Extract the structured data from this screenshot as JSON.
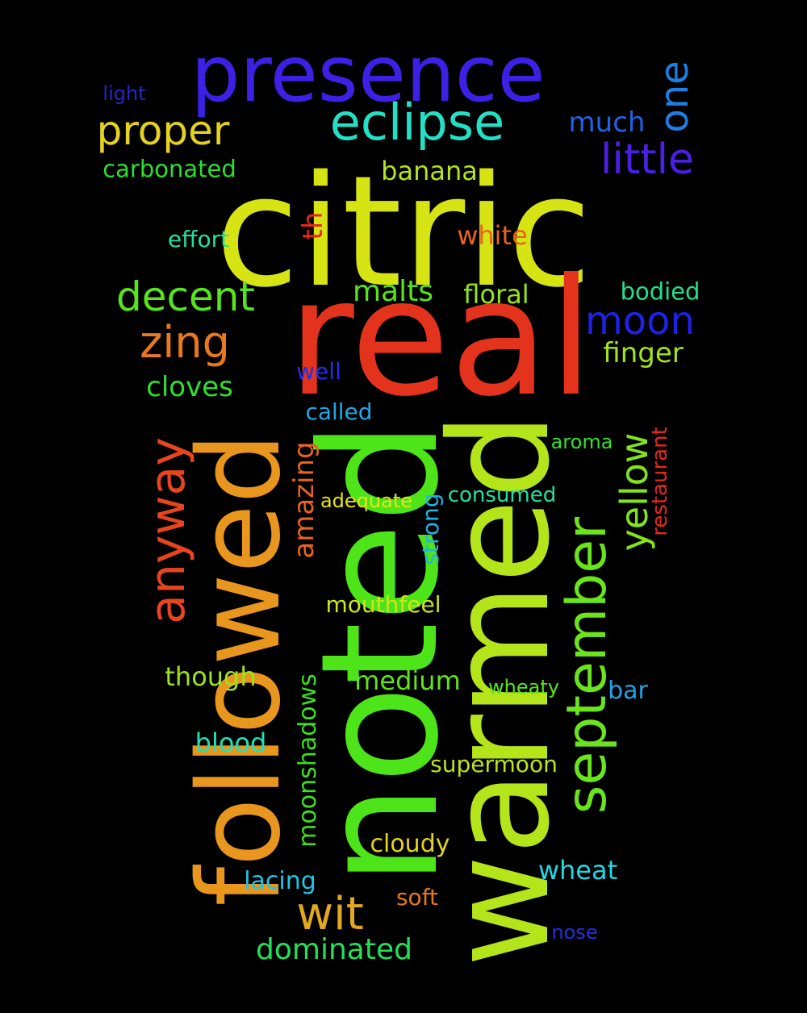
{
  "words": [
    {
      "text": "citric",
      "color": "#d6e414"
    },
    {
      "text": "real",
      "color": "#e4331c"
    },
    {
      "text": "noted",
      "color": "#4ee41a"
    },
    {
      "text": "warmed",
      "color": "#b4e41a"
    },
    {
      "text": "followed",
      "color": "#e8961e"
    },
    {
      "text": "presence",
      "color": "#3c20e4"
    },
    {
      "text": "september",
      "color": "#6ae41c"
    },
    {
      "text": "eclipse",
      "color": "#22e0c6"
    },
    {
      "text": "anyway",
      "color": "#e8441e"
    },
    {
      "text": "proper",
      "color": "#e4d21e"
    },
    {
      "text": "one",
      "color": "#1e7ee4"
    },
    {
      "text": "little",
      "color": "#4a20e4"
    },
    {
      "text": "decent",
      "color": "#56e41c"
    },
    {
      "text": "zing",
      "color": "#e8781e"
    },
    {
      "text": "moon",
      "color": "#1e22e4"
    },
    {
      "text": "yellow",
      "color": "#84e41c"
    },
    {
      "text": "wit",
      "color": "#e4a81e"
    },
    {
      "text": "dominated",
      "color": "#24e05a"
    },
    {
      "text": "much",
      "color": "#2062e4"
    },
    {
      "text": "banana",
      "color": "#b4e41e"
    },
    {
      "text": "carbonated",
      "color": "#2ae030"
    },
    {
      "text": "white",
      "color": "#e8641e"
    },
    {
      "text": "effort",
      "color": "#22e0a2"
    },
    {
      "text": "th",
      "color": "#e4281e"
    },
    {
      "text": "malts",
      "color": "#56e41c"
    },
    {
      "text": "floral",
      "color": "#96e41c"
    },
    {
      "text": "bodied",
      "color": "#22e08c"
    },
    {
      "text": "finger",
      "color": "#a0e41c"
    },
    {
      "text": "cloves",
      "color": "#2ee030"
    },
    {
      "text": "well",
      "color": "#2030e4"
    },
    {
      "text": "called",
      "color": "#20a8e4"
    },
    {
      "text": "amazing",
      "color": "#e8641e"
    },
    {
      "text": "aroma",
      "color": "#34e030"
    },
    {
      "text": "restaurant",
      "color": "#e4281e"
    },
    {
      "text": "adequate",
      "color": "#e4e41c"
    },
    {
      "text": "consumed",
      "color": "#22e0a0"
    },
    {
      "text": "strong",
      "color": "#20b4e4"
    },
    {
      "text": "mouthfeel",
      "color": "#d0e41c"
    },
    {
      "text": "though",
      "color": "#9ee41c"
    },
    {
      "text": "medium",
      "color": "#60e41c"
    },
    {
      "text": "wheaty",
      "color": "#5ae41c"
    },
    {
      "text": "bar",
      "color": "#20a2e4"
    },
    {
      "text": "moonshadows",
      "color": "#3ce01e"
    },
    {
      "text": "blood",
      "color": "#22e0b4"
    },
    {
      "text": "supermoon",
      "color": "#bee41c"
    },
    {
      "text": "cloudy",
      "color": "#e4d41c"
    },
    {
      "text": "wheat",
      "color": "#22d8e4"
    },
    {
      "text": "lacing",
      "color": "#22c4e4"
    },
    {
      "text": "soft",
      "color": "#e8781e"
    },
    {
      "text": "nose",
      "color": "#2030e4"
    },
    {
      "text": "light",
      "color": "#2a26c4"
    }
  ]
}
